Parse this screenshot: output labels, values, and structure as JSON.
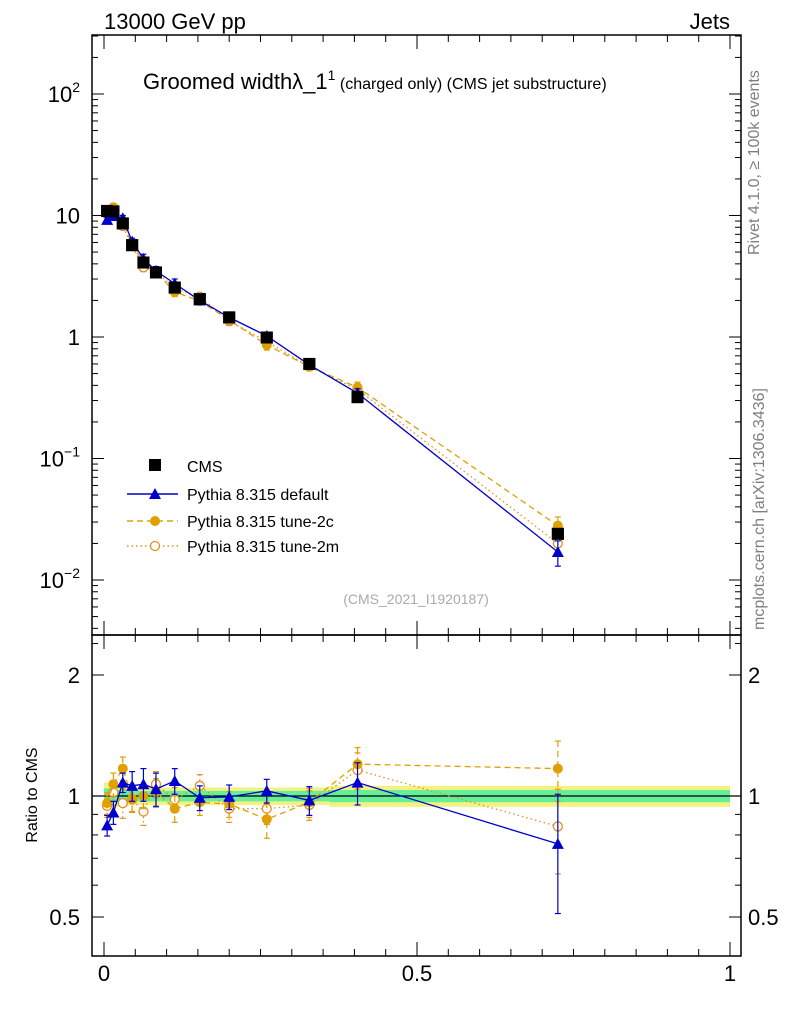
{
  "header": {
    "left": "13000 GeV pp",
    "right": "Jets"
  },
  "title": {
    "main": "Groomed widthλ_1",
    "superscript": "1",
    "suffix": " (charged only) (CMS jet substructure)"
  },
  "side_labels": {
    "rivet": "Rivet 4.1.0, ≥ 100k events",
    "mcplots": "mcplots.cern.ch [arXiv:1306.3436]"
  },
  "analysis_id": "(CMS_2021_I1920187)",
  "colors": {
    "data": "#000000",
    "default": "#0000cc",
    "tune2c": "#e0a000",
    "tune2m": "#e09020",
    "band_inner": "#66ee99",
    "band_outer": "#f2f280"
  },
  "chart_data": [
    {
      "type": "scatter",
      "panel": "main",
      "yscale": "log",
      "xlim": [
        0,
        1
      ],
      "ylim": [
        0.003,
        300
      ],
      "y_ticks": [
        {
          "value": 0.01,
          "base": "10",
          "exp": "−2"
        },
        {
          "value": 0.1,
          "base": "10",
          "exp": "−1"
        },
        {
          "value": 1,
          "base": "1",
          "exp": ""
        },
        {
          "value": 10,
          "base": "10",
          "exp": ""
        },
        {
          "value": 100,
          "base": "10",
          "exp": "2"
        }
      ],
      "legend": {
        "position": "lower-left",
        "entries": [
          "CMS",
          "Pythia 8.315 default",
          "Pythia 8.315 tune-2c",
          "Pythia 8.315 tune-2m"
        ]
      },
      "series": [
        {
          "name": "CMS",
          "style": "data",
          "points": [
            {
              "x": 0.005,
              "y": 10.9
            },
            {
              "x": 0.015,
              "y": 10.8
            },
            {
              "x": 0.03,
              "y": 8.6
            },
            {
              "x": 0.045,
              "y": 5.7
            },
            {
              "x": 0.063,
              "y": 4.1
            },
            {
              "x": 0.083,
              "y": 3.4
            },
            {
              "x": 0.113,
              "y": 2.55
            },
            {
              "x": 0.153,
              "y": 2.05
            },
            {
              "x": 0.2,
              "y": 1.45
            },
            {
              "x": 0.26,
              "y": 0.99
            },
            {
              "x": 0.328,
              "y": 0.6
            },
            {
              "x": 0.405,
              "y": 0.32
            },
            {
              "x": 0.725,
              "y": 0.024
            }
          ]
        },
        {
          "name": "Pythia 8.315 default",
          "style": "default",
          "points": [
            {
              "x": 0.005,
              "y": 9.2,
              "err": 0.5
            },
            {
              "x": 0.015,
              "y": 9.9,
              "err": 0.5
            },
            {
              "x": 0.03,
              "y": 9.5,
              "err": 0.5
            },
            {
              "x": 0.045,
              "y": 6.1,
              "err": 0.4
            },
            {
              "x": 0.063,
              "y": 4.4,
              "err": 0.4
            },
            {
              "x": 0.083,
              "y": 3.5,
              "err": 0.3
            },
            {
              "x": 0.113,
              "y": 2.75,
              "err": 0.25
            },
            {
              "x": 0.153,
              "y": 2.0,
              "err": 0.15
            },
            {
              "x": 0.2,
              "y": 1.45,
              "err": 0.1
            },
            {
              "x": 0.26,
              "y": 1.02,
              "err": 0.07
            },
            {
              "x": 0.328,
              "y": 0.59,
              "err": 0.04
            },
            {
              "x": 0.405,
              "y": 0.345,
              "err": 0.03
            },
            {
              "x": 0.725,
              "y": 0.017,
              "err": 0.004
            }
          ]
        },
        {
          "name": "Pythia 8.315 tune-2c",
          "style": "tune2c",
          "points": [
            {
              "x": 0.005,
              "y": 10.5,
              "err": 0.6
            },
            {
              "x": 0.015,
              "y": 11.7,
              "err": 0.6
            },
            {
              "x": 0.03,
              "y": 9.0,
              "err": 0.5
            },
            {
              "x": 0.045,
              "y": 5.6,
              "err": 0.4
            },
            {
              "x": 0.063,
              "y": 4.2,
              "err": 0.3
            },
            {
              "x": 0.083,
              "y": 3.4,
              "err": 0.3
            },
            {
              "x": 0.113,
              "y": 2.35,
              "err": 0.2
            },
            {
              "x": 0.153,
              "y": 1.98,
              "err": 0.15
            },
            {
              "x": 0.2,
              "y": 1.38,
              "err": 0.1
            },
            {
              "x": 0.26,
              "y": 0.86,
              "err": 0.08
            },
            {
              "x": 0.328,
              "y": 0.57,
              "err": 0.04
            },
            {
              "x": 0.405,
              "y": 0.385,
              "err": 0.04
            },
            {
              "x": 0.725,
              "y": 0.028,
              "err": 0.005
            }
          ]
        },
        {
          "name": "Pythia 8.315 tune-2m",
          "style": "tune2m",
          "points": [
            {
              "x": 0.005,
              "y": 10.2,
              "err": 0.6
            },
            {
              "x": 0.015,
              "y": 11.0,
              "err": 0.6
            },
            {
              "x": 0.03,
              "y": 8.2,
              "err": 0.5
            },
            {
              "x": 0.045,
              "y": 5.6,
              "err": 0.4
            },
            {
              "x": 0.063,
              "y": 3.75,
              "err": 0.3
            },
            {
              "x": 0.083,
              "y": 3.5,
              "err": 0.3
            },
            {
              "x": 0.113,
              "y": 2.5,
              "err": 0.2
            },
            {
              "x": 0.153,
              "y": 2.15,
              "err": 0.15
            },
            {
              "x": 0.2,
              "y": 1.35,
              "err": 0.1
            },
            {
              "x": 0.26,
              "y": 0.92,
              "err": 0.08
            },
            {
              "x": 0.328,
              "y": 0.57,
              "err": 0.04
            },
            {
              "x": 0.405,
              "y": 0.37,
              "err": 0.04
            },
            {
              "x": 0.725,
              "y": 0.02,
              "err": 0.004
            }
          ]
        }
      ]
    },
    {
      "type": "scatter",
      "panel": "ratio",
      "yscale": "log",
      "ylabel": "Ratio to CMS",
      "xlim": [
        0,
        1
      ],
      "ylim": [
        0.4,
        2.5
      ],
      "x_ticks": [
        {
          "value": 0,
          "label": "0"
        },
        {
          "value": 0.5,
          "label": "0.5"
        },
        {
          "value": 1,
          "label": "1"
        }
      ],
      "y_ticks": [
        {
          "value": 0.5,
          "label": "0.5"
        },
        {
          "value": 1,
          "label": "1"
        },
        {
          "value": 2,
          "label": "2"
        }
      ],
      "bins": [
        0,
        0.01,
        0.02,
        0.04,
        0.05,
        0.075,
        0.09,
        0.135,
        0.17,
        0.23,
        0.29,
        0.36,
        0.45,
        1.0
      ],
      "band_outer": [
        0.08,
        0.07,
        0.06,
        0.05,
        0.05,
        0.05,
        0.05,
        0.05,
        0.05,
        0.05,
        0.05,
        0.06,
        0.06
      ],
      "band_inner": [
        0.045,
        0.04,
        0.035,
        0.03,
        0.03,
        0.03,
        0.03,
        0.03,
        0.03,
        0.03,
        0.03,
        0.035,
        0.035
      ],
      "series": [
        {
          "name": "Pythia 8.315 default",
          "style": "default",
          "points": [
            {
              "x": 0.005,
              "y": 0.845,
              "err": 0.05
            },
            {
              "x": 0.015,
              "y": 0.91,
              "err": 0.06
            },
            {
              "x": 0.03,
              "y": 1.08,
              "err": 0.06
            },
            {
              "x": 0.045,
              "y": 1.06,
              "err": 0.09
            },
            {
              "x": 0.063,
              "y": 1.07,
              "err": 0.1
            },
            {
              "x": 0.083,
              "y": 1.04,
              "err": 0.1
            },
            {
              "x": 0.113,
              "y": 1.09,
              "err": 0.08
            },
            {
              "x": 0.153,
              "y": 0.99,
              "err": 0.07
            },
            {
              "x": 0.2,
              "y": 0.995,
              "err": 0.07
            },
            {
              "x": 0.26,
              "y": 1.03,
              "err": 0.07
            },
            {
              "x": 0.328,
              "y": 0.975,
              "err": 0.08
            },
            {
              "x": 0.405,
              "y": 1.08,
              "err": 0.13
            },
            {
              "x": 0.725,
              "y": 0.76,
              "err": 0.25
            }
          ]
        },
        {
          "name": "Pythia 8.315 tune-2c",
          "style": "tune2c",
          "points": [
            {
              "x": 0.005,
              "y": 0.96,
              "err": 0.06
            },
            {
              "x": 0.015,
              "y": 1.07,
              "err": 0.07
            },
            {
              "x": 0.03,
              "y": 1.17,
              "err": 0.08
            },
            {
              "x": 0.045,
              "y": 0.985,
              "err": 0.07
            },
            {
              "x": 0.063,
              "y": 1.0,
              "err": 0.07
            },
            {
              "x": 0.083,
              "y": 1.025,
              "err": 0.08
            },
            {
              "x": 0.113,
              "y": 0.93,
              "err": 0.07
            },
            {
              "x": 0.153,
              "y": 0.965,
              "err": 0.07
            },
            {
              "x": 0.2,
              "y": 0.955,
              "err": 0.07
            },
            {
              "x": 0.26,
              "y": 0.875,
              "err": 0.09
            },
            {
              "x": 0.328,
              "y": 0.965,
              "err": 0.08
            },
            {
              "x": 0.405,
              "y": 1.2,
              "err": 0.12
            },
            {
              "x": 0.725,
              "y": 1.17,
              "err": 0.2
            }
          ]
        },
        {
          "name": "Pythia 8.315 tune-2m",
          "style": "tune2m",
          "points": [
            {
              "x": 0.005,
              "y": 0.945,
              "err": 0.06
            },
            {
              "x": 0.015,
              "y": 1.02,
              "err": 0.07
            },
            {
              "x": 0.03,
              "y": 0.96,
              "err": 0.08
            },
            {
              "x": 0.045,
              "y": 0.98,
              "err": 0.07
            },
            {
              "x": 0.063,
              "y": 0.915,
              "err": 0.07
            },
            {
              "x": 0.083,
              "y": 1.07,
              "err": 0.08
            },
            {
              "x": 0.113,
              "y": 0.98,
              "err": 0.07
            },
            {
              "x": 0.153,
              "y": 1.06,
              "err": 0.07
            },
            {
              "x": 0.2,
              "y": 0.93,
              "err": 0.07
            },
            {
              "x": 0.26,
              "y": 0.93,
              "err": 0.08
            },
            {
              "x": 0.328,
              "y": 0.95,
              "err": 0.08
            },
            {
              "x": 0.405,
              "y": 1.16,
              "err": 0.12
            },
            {
              "x": 0.725,
              "y": 0.84,
              "err": 0.2
            }
          ]
        }
      ]
    }
  ]
}
